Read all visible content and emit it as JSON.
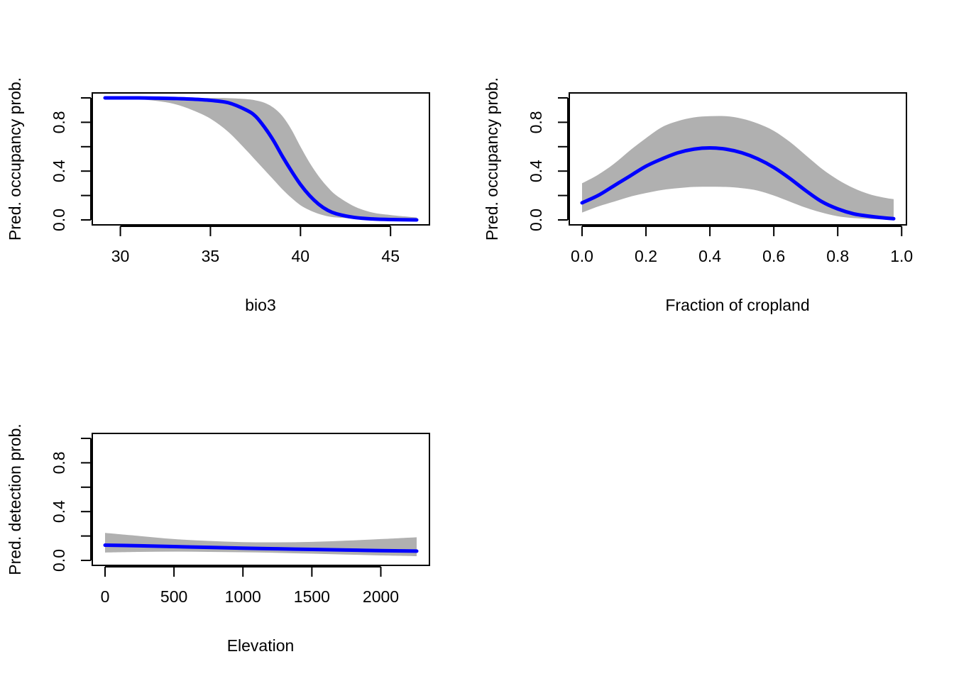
{
  "colors": {
    "background": "#ffffff",
    "band": "#b0b0b0",
    "line": "#0000ff",
    "axis": "#000000"
  },
  "chart_data": [
    {
      "type": "line",
      "title": "",
      "xlabel": "bio3",
      "ylabel": "Pred. occupancy prob.",
      "xlim": [
        29.15,
        46.45
      ],
      "ylim": [
        0,
        1
      ],
      "x_ticks": [
        30,
        35,
        40,
        45
      ],
      "x_tick_labels": [
        "30",
        "35",
        "40",
        "45"
      ],
      "y_ticks": [
        0,
        0.2,
        0.4,
        0.6,
        0.8,
        1
      ],
      "y_tick_labels": [
        "0.0",
        "",
        "0.4",
        "",
        "0.8",
        ""
      ],
      "grid": false,
      "series": [
        {
          "role": "predicted",
          "x": [
            29.15,
            30,
            31,
            32,
            33,
            34,
            35,
            36,
            37,
            37.5,
            38,
            38.5,
            39,
            39.5,
            40,
            40.5,
            41,
            41.5,
            42,
            43,
            44,
            45,
            46.45
          ],
          "y": [
            1.0,
            1.0,
            1.0,
            0.998,
            0.995,
            0.99,
            0.98,
            0.96,
            0.9,
            0.85,
            0.76,
            0.65,
            0.52,
            0.4,
            0.29,
            0.2,
            0.13,
            0.08,
            0.05,
            0.02,
            0.008,
            0.003,
            0.0
          ]
        },
        {
          "role": "ci_lower",
          "x": [
            29.15,
            30,
            31,
            32,
            33,
            34,
            35,
            36,
            37,
            37.5,
            38,
            38.5,
            39,
            39.5,
            40,
            40.5,
            41,
            41.5,
            42,
            43,
            44,
            45,
            46.45
          ],
          "y": [
            1.0,
            0.998,
            0.99,
            0.975,
            0.95,
            0.9,
            0.83,
            0.72,
            0.57,
            0.49,
            0.41,
            0.33,
            0.25,
            0.18,
            0.12,
            0.08,
            0.05,
            0.03,
            0.02,
            0.01,
            0.004,
            0.001,
            0.0
          ]
        },
        {
          "role": "ci_upper",
          "x": [
            29.15,
            30,
            31,
            32,
            33,
            34,
            35,
            36,
            37,
            37.5,
            38,
            38.5,
            39,
            39.5,
            40,
            40.5,
            41,
            41.5,
            42,
            43,
            44,
            45,
            46.45
          ],
          "y": [
            1.0,
            1.0,
            1.0,
            1.0,
            1.0,
            1.0,
            0.999,
            0.998,
            0.99,
            0.98,
            0.96,
            0.92,
            0.85,
            0.74,
            0.6,
            0.47,
            0.36,
            0.27,
            0.2,
            0.11,
            0.06,
            0.04,
            0.02
          ]
        }
      ]
    },
    {
      "type": "line",
      "title": "",
      "xlabel": "Fraction of cropland",
      "ylabel": "Pred. occupancy prob.",
      "xlim": [
        0,
        0.975
      ],
      "ylim": [
        0,
        1
      ],
      "x_ticks": [
        0,
        0.2,
        0.4,
        0.6,
        0.8,
        1.0
      ],
      "x_tick_labels": [
        "0.0",
        "0.2",
        "0.4",
        "0.6",
        "0.8",
        "1.0"
      ],
      "y_ticks": [
        0,
        0.2,
        0.4,
        0.6,
        0.8,
        1
      ],
      "y_tick_labels": [
        "0.0",
        "",
        "0.4",
        "",
        "0.8",
        ""
      ],
      "grid": false,
      "series": [
        {
          "role": "predicted",
          "x": [
            0,
            0.05,
            0.1,
            0.15,
            0.2,
            0.25,
            0.3,
            0.35,
            0.4,
            0.45,
            0.5,
            0.55,
            0.6,
            0.65,
            0.7,
            0.75,
            0.8,
            0.85,
            0.9,
            0.95,
            0.975
          ],
          "y": [
            0.14,
            0.2,
            0.28,
            0.36,
            0.44,
            0.5,
            0.55,
            0.58,
            0.59,
            0.58,
            0.55,
            0.5,
            0.43,
            0.34,
            0.24,
            0.15,
            0.09,
            0.05,
            0.03,
            0.015,
            0.01
          ]
        },
        {
          "role": "ci_lower",
          "x": [
            0,
            0.05,
            0.1,
            0.15,
            0.2,
            0.25,
            0.3,
            0.35,
            0.4,
            0.45,
            0.5,
            0.55,
            0.6,
            0.65,
            0.7,
            0.75,
            0.8,
            0.85,
            0.9,
            0.95,
            0.975
          ],
          "y": [
            0.06,
            0.11,
            0.15,
            0.19,
            0.22,
            0.245,
            0.26,
            0.27,
            0.272,
            0.27,
            0.26,
            0.24,
            0.2,
            0.15,
            0.1,
            0.06,
            0.03,
            0.015,
            0.007,
            0.003,
            0.002
          ]
        },
        {
          "role": "ci_upper",
          "x": [
            0,
            0.05,
            0.1,
            0.15,
            0.2,
            0.25,
            0.3,
            0.35,
            0.4,
            0.45,
            0.5,
            0.55,
            0.6,
            0.65,
            0.7,
            0.75,
            0.8,
            0.85,
            0.9,
            0.95,
            0.975
          ],
          "y": [
            0.3,
            0.37,
            0.46,
            0.57,
            0.67,
            0.76,
            0.81,
            0.84,
            0.85,
            0.85,
            0.83,
            0.79,
            0.73,
            0.64,
            0.53,
            0.42,
            0.33,
            0.26,
            0.21,
            0.18,
            0.17
          ]
        }
      ]
    },
    {
      "type": "line",
      "title": "",
      "xlabel": "Elevation",
      "ylabel": "Pred. detection prob.",
      "xlim": [
        0,
        2260
      ],
      "ylim": [
        0,
        1
      ],
      "x_ticks": [
        0,
        500,
        1000,
        1500,
        2000
      ],
      "x_tick_labels": [
        "0",
        "500",
        "1000",
        "1500",
        "2000"
      ],
      "y_ticks": [
        0,
        0.2,
        0.4,
        0.6,
        0.8,
        1
      ],
      "y_tick_labels": [
        "0.0",
        "",
        "0.4",
        "",
        "0.8",
        ""
      ],
      "grid": false,
      "series": [
        {
          "role": "predicted",
          "x": [
            0,
            250,
            500,
            750,
            1000,
            1250,
            1500,
            1750,
            2000,
            2260
          ],
          "y": [
            0.125,
            0.12,
            0.113,
            0.107,
            0.1,
            0.095,
            0.09,
            0.085,
            0.08,
            0.076
          ]
        },
        {
          "role": "ci_lower",
          "x": [
            0,
            250,
            500,
            750,
            1000,
            1250,
            1500,
            1750,
            2000,
            2260
          ],
          "y": [
            0.065,
            0.07,
            0.072,
            0.07,
            0.067,
            0.062,
            0.055,
            0.048,
            0.041,
            0.035
          ]
        },
        {
          "role": "ci_upper",
          "x": [
            0,
            250,
            500,
            750,
            1000,
            1250,
            1500,
            1750,
            2000,
            2260
          ],
          "y": [
            0.225,
            0.2,
            0.175,
            0.16,
            0.15,
            0.148,
            0.152,
            0.162,
            0.175,
            0.19
          ]
        }
      ]
    }
  ]
}
